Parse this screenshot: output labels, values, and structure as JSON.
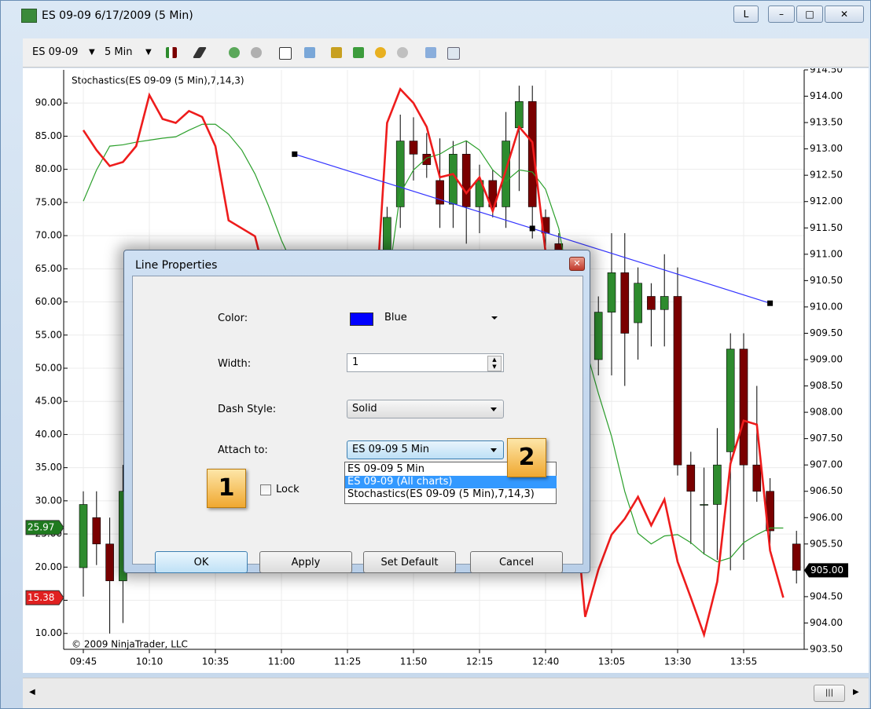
{
  "window": {
    "title": "ES 09-09  6/17/2009 (5 Min)",
    "button": "L"
  },
  "toolbar": {
    "instrument": "ES 09-09",
    "interval": "5 Min"
  },
  "chart": {
    "indicator_label": "Stochastics(ES 09-09 (5 Min),7,14,3)",
    "copyright": "© 2009 NinjaTrader, LLC",
    "categories": [
      "09:45",
      null,
      null,
      null,
      null,
      "10:10",
      null,
      null,
      null,
      null,
      "10:35",
      null,
      null,
      null,
      null,
      "11:00",
      null,
      null,
      null,
      null,
      "11:25",
      null,
      null,
      null,
      null,
      "11:50",
      null,
      null,
      null,
      null,
      "12:15",
      null,
      null,
      null,
      null,
      "12:40",
      null,
      null,
      null,
      null,
      "13:05",
      null,
      null,
      null,
      null,
      "13:30",
      null,
      null,
      null,
      null,
      "13:55",
      null,
      null,
      null,
      null
    ],
    "candles": {
      "open": [
        905.05,
        906.0,
        905.5,
        904.8,
        null,
        null,
        null,
        null,
        null,
        null,
        null,
        null,
        null,
        null,
        null,
        null,
        null,
        null,
        null,
        null,
        null,
        null,
        null,
        910.75,
        911.9,
        913.15,
        912.9,
        912.4,
        911.95,
        912.9,
        911.9,
        912.4,
        911.9,
        913.4,
        913.9,
        911.7,
        911.2,
        null,
        null,
        909.0,
        909.9,
        910.65,
        909.7,
        910.2,
        909.95,
        910.2,
        907.0,
        906.25,
        906.25,
        907.25,
        909.2,
        907.0,
        906.5,
        null,
        905.5
      ],
      "high": [
        906.5,
        906.5,
        906.0,
        907.0,
        null,
        null,
        null,
        null,
        null,
        null,
        null,
        null,
        null,
        null,
        null,
        null,
        null,
        null,
        null,
        null,
        null,
        null,
        null,
        911.9,
        913.65,
        913.6,
        913.3,
        913.2,
        913.15,
        913.15,
        912.7,
        912.6,
        913.7,
        914.2,
        914.2,
        911.85,
        911.4,
        null,
        null,
        910.2,
        911.4,
        911.4,
        910.75,
        910.45,
        911.0,
        910.75,
        907.25,
        906.95,
        907.7,
        909.5,
        909.5,
        908.5,
        906.75,
        null,
        905.75
      ],
      "low": [
        904.5,
        905.1,
        903.8,
        904.0,
        null,
        null,
        null,
        null,
        null,
        null,
        null,
        null,
        null,
        null,
        null,
        null,
        null,
        null,
        null,
        null,
        null,
        null,
        null,
        910.5,
        911.5,
        912.4,
        912.45,
        911.5,
        911.5,
        911.2,
        911.4,
        911.7,
        911.5,
        912.2,
        911.3,
        910.9,
        910.75,
        null,
        null,
        908.7,
        908.7,
        908.5,
        909.0,
        909.25,
        909.25,
        906.8,
        905.5,
        905.3,
        905.2,
        905.0,
        905.2,
        906.3,
        905.5,
        null,
        904.75
      ],
      "close": [
        906.25,
        905.5,
        904.8,
        906.5,
        null,
        null,
        null,
        null,
        null,
        null,
        null,
        null,
        null,
        null,
        null,
        null,
        null,
        null,
        null,
        null,
        null,
        null,
        null,
        911.7,
        913.15,
        912.9,
        912.7,
        911.95,
        912.9,
        911.9,
        912.4,
        911.9,
        913.15,
        913.9,
        911.9,
        911.4,
        910.95,
        null,
        null,
        909.9,
        910.65,
        909.5,
        910.45,
        909.95,
        910.2,
        907.0,
        906.5,
        906.25,
        907.0,
        909.2,
        907.0,
        906.5,
        905.75,
        null,
        905.0
      ]
    },
    "up_color": "#2e8b2e",
    "down_color": "#7a0000",
    "price_lim": [
      903.5,
      914.5
    ],
    "price_ticks": [
      {
        "value": 903.5,
        "label": "903.50"
      },
      {
        "value": 904,
        "label": "904.00"
      },
      {
        "value": 904.5,
        "label": "904.50"
      },
      {
        "value": 905,
        "label": "905.00"
      },
      {
        "value": 905.5,
        "label": "905.50"
      },
      {
        "value": 906,
        "label": "906.00"
      },
      {
        "value": 906.5,
        "label": "906.50"
      },
      {
        "value": 907,
        "label": "907.00"
      },
      {
        "value": 907.5,
        "label": "907.50"
      },
      {
        "value": 908,
        "label": "908.00"
      },
      {
        "value": 908.5,
        "label": "908.50"
      },
      {
        "value": 909,
        "label": "909.00"
      },
      {
        "value": 909.5,
        "label": "909.50"
      },
      {
        "value": 910,
        "label": "910.00"
      },
      {
        "value": 910.5,
        "label": "910.50"
      },
      {
        "value": 911,
        "label": "911.00"
      },
      {
        "value": 911.5,
        "label": "911.50"
      },
      {
        "value": 912,
        "label": "912.00"
      },
      {
        "value": 912.5,
        "label": "912.50"
      },
      {
        "value": 913,
        "label": "913.00"
      },
      {
        "value": 913.5,
        "label": "913.50"
      },
      {
        "value": 914,
        "label": "914.00"
      },
      {
        "value": 914.5,
        "label": "914.50"
      }
    ],
    "stoch_lim": [
      7.6,
      95.0
    ],
    "stoch_ticks": [
      {
        "value": 10,
        "label": "10.00"
      },
      {
        "value": 15,
        "label": "15.00"
      },
      {
        "value": 20,
        "label": "20.00"
      },
      {
        "value": 25,
        "label": "25.00"
      },
      {
        "value": 30,
        "label": "30.00"
      },
      {
        "value": 35,
        "label": "35.00"
      },
      {
        "value": 40,
        "label": "40.00"
      },
      {
        "value": 45,
        "label": "45.00"
      },
      {
        "value": 50,
        "label": "50.00"
      },
      {
        "value": 55,
        "label": "55.00"
      },
      {
        "value": 60,
        "label": "60.00"
      },
      {
        "value": 65,
        "label": "65.00"
      },
      {
        "value": 70,
        "label": "70.00"
      },
      {
        "value": 75,
        "label": "75.00"
      },
      {
        "value": 80,
        "label": "80.00"
      },
      {
        "value": 85,
        "label": "85.00"
      },
      {
        "value": 90,
        "label": "90.00"
      }
    ],
    "k_color": "#ee1c1c",
    "k_values": [
      85.9,
      82.9,
      80.5,
      81.1,
      83.5,
      91.2,
      87.6,
      87.0,
      88.8,
      87.9,
      83.5,
      72.3,
      71.1,
      69.9,
      62,
      55,
      48,
      40,
      35,
      30,
      35,
      45,
      55,
      87.0,
      92.1,
      90.0,
      86.4,
      78.8,
      79.3,
      76.4,
      78.8,
      73.7,
      79.9,
      86.4,
      84.1,
      67.5,
      60,
      34.4,
      12.5,
      19.6,
      24.9,
      27.3,
      30.6,
      26.3,
      30.2,
      20.8,
      15.4,
      9.8,
      17.8,
      35.6,
      42.1,
      41.5,
      22.5,
      15.4,
      null
    ],
    "d_color": "#2ca02c",
    "d_values": [
      75.2,
      79.9,
      83.5,
      83.7,
      84.1,
      84.4,
      84.7,
      84.9,
      85.9,
      86.8,
      86.8,
      85.3,
      82.9,
      79.3,
      74.6,
      69.3,
      65,
      60,
      55,
      50,
      48,
      52,
      58,
      62,
      76.4,
      79.9,
      81.7,
      82.3,
      83.5,
      84.3,
      82.9,
      79.9,
      78.2,
      79.9,
      79.6,
      77.0,
      71.1,
      60,
      53.3,
      46.2,
      39.7,
      31.4,
      25.1,
      23.5,
      24.7,
      24.9,
      23.7,
      22.0,
      20.8,
      21.4,
      23.7,
      24.9,
      25.9,
      25.9,
      null
    ],
    "line": {
      "x": [
        16,
        34,
        52
      ],
      "y": [
        912.9,
        911.49,
        910.07
      ],
      "color": "#3333ff"
    },
    "left_markers": [
      {
        "value": 25.97,
        "color": "#1f7a1f"
      },
      {
        "value": 15.38,
        "color": "#e02020"
      }
    ],
    "right_markers": [
      {
        "value": 905,
        "label": "905.00",
        "color": "#000000"
      }
    ]
  },
  "dialog": {
    "title": "Line Properties",
    "color_label": "Color:",
    "color_value": "Blue",
    "color_swatch": "#0000ff",
    "width_label": "Width:",
    "width_value": "1",
    "dash_label": "Dash Style:",
    "dash_value": "Solid",
    "attach_label": "Attach to:",
    "attach_value": "ES 09-09 5 Min",
    "attach_options": [
      "ES 09-09 5 Min",
      "ES 09-09 (All charts)",
      "Stochastics(ES 09-09 (5 Min),7,14,3)"
    ],
    "lock_label": "Lock",
    "buttons": [
      "OK",
      "Apply",
      "Set Default",
      "Cancel"
    ],
    "badges": [
      "1",
      "2"
    ]
  }
}
